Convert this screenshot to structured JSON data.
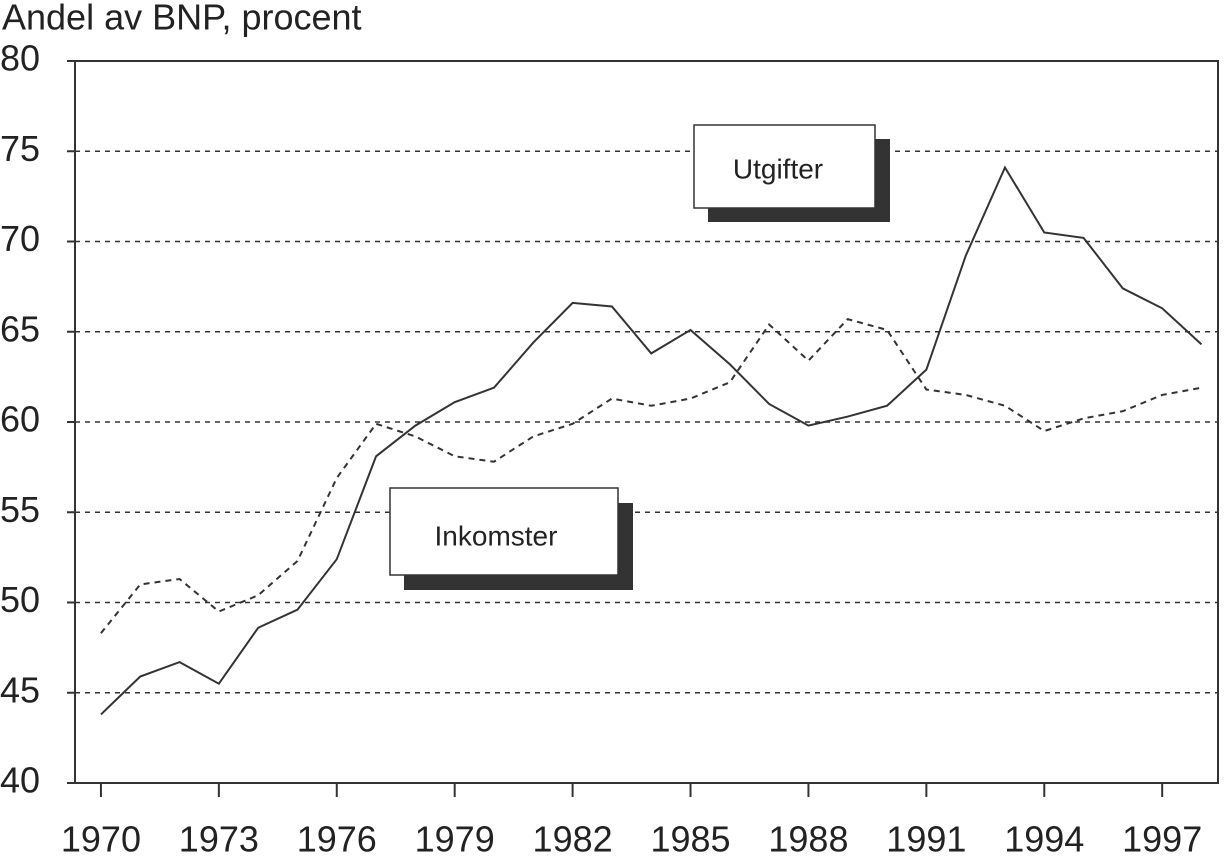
{
  "chart_data": {
    "type": "line",
    "title": "Andel av BNP, procent",
    "x": [
      1970,
      1971,
      1972,
      1973,
      1974,
      1975,
      1976,
      1977,
      1978,
      1979,
      1980,
      1981,
      1982,
      1983,
      1984,
      1985,
      1986,
      1987,
      1988,
      1989,
      1990,
      1991,
      1992,
      1993,
      1994,
      1995,
      1996,
      1997,
      1998
    ],
    "series": [
      {
        "name": "Utgifter",
        "color": "#333333",
        "dash": false,
        "values": [
          43.8,
          45.9,
          46.7,
          45.5,
          48.6,
          49.6,
          52.4,
          58.1,
          59.8,
          61.1,
          61.9,
          64.4,
          66.6,
          66.4,
          63.8,
          65.1,
          63.2,
          61.0,
          59.8,
          60.3,
          60.9,
          62.9,
          69.2,
          74.1,
          70.5,
          70.2,
          67.4,
          66.3,
          64.3
        ]
      },
      {
        "name": "Inkomster",
        "color": "#333333",
        "dash": true,
        "values": [
          48.3,
          51.0,
          51.3,
          49.5,
          50.4,
          52.3,
          56.9,
          59.9,
          59.2,
          58.1,
          57.8,
          59.2,
          59.9,
          61.3,
          60.9,
          61.3,
          62.2,
          65.4,
          63.4,
          65.7,
          65.1,
          61.8,
          61.5,
          60.9,
          59.5,
          60.2,
          60.6,
          61.5,
          61.9
        ]
      }
    ],
    "xlim": [
      1969.34,
      1998.42
    ],
    "xticks": [
      1970,
      1973,
      1976,
      1979,
      1982,
      1985,
      1988,
      1991,
      1994,
      1997
    ],
    "ylim": [
      40,
      80
    ],
    "yticks": [
      40,
      45,
      50,
      55,
      60,
      65,
      70,
      75,
      80
    ],
    "grid": true
  }
}
